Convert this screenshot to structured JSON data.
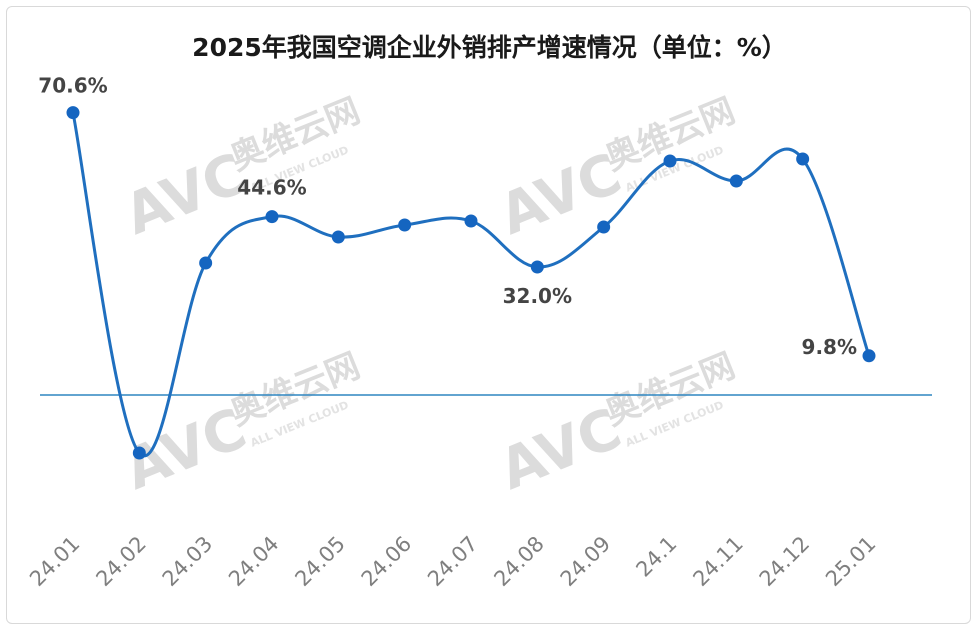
{
  "chart_data": {
    "type": "line",
    "title": "2025年我国空调企业外销排产增速情况（单位：%）",
    "categories": [
      "24.01",
      "24.02",
      "24.03",
      "24.04",
      "24.05",
      "24.06",
      "24.07",
      "24.08",
      "24.09",
      "24.1",
      "24.11",
      "24.12",
      "25.01"
    ],
    "series": [
      {
        "values": [
          70.6,
          -14.5,
          33.0,
          44.6,
          39.5,
          42.5,
          43.5,
          32.0,
          42.0,
          58.5,
          53.5,
          59.0,
          9.8
        ],
        "data_labels": [
          "70.6%",
          "",
          "",
          "44.6%",
          "",
          "",
          "",
          "32.0%",
          "",
          "",
          "",
          "",
          "9.8%"
        ],
        "color": "#1f6fbf"
      }
    ],
    "ylim": [
      -35,
      85
    ],
    "xlabel": "",
    "ylabel": "",
    "grid": false,
    "zero_line": true,
    "zero_line_color": "#2e86c1",
    "marker_color": "#1565c0"
  },
  "watermark": {
    "logo_text": "AVC",
    "brand_text": "奥维云网",
    "sub_text": "ALL VIEW CLOUD"
  }
}
